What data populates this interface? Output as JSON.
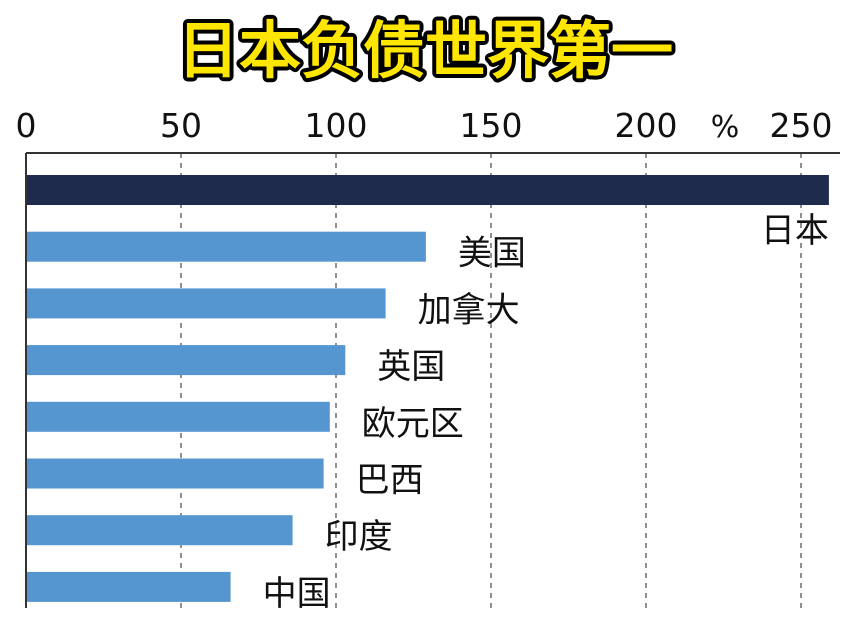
{
  "chart_data": {
    "type": "bar",
    "orientation": "horizontal",
    "title": "日本负债世界第一",
    "unit": "%",
    "x_axis_position": "top",
    "xlim": [
      0,
      260
    ],
    "xticks": [
      0,
      50,
      100,
      150,
      200,
      250
    ],
    "grid": "vertical dashed",
    "categories": [
      "日本",
      "美国",
      "加拿大",
      "英国",
      "欧元区",
      "巴西",
      "印度",
      "中国"
    ],
    "values": [
      259,
      129,
      116,
      103,
      98,
      96,
      86,
      66
    ],
    "highlight_category": "日本"
  },
  "colors": {
    "background": "#ffffff",
    "highlight_bar": "#1f2b4d",
    "bar": "#5595d0",
    "title_fill": "#ffe600",
    "title_stroke": "#000000",
    "axis": "#333333",
    "grid": "#555555",
    "text": "#111111"
  }
}
